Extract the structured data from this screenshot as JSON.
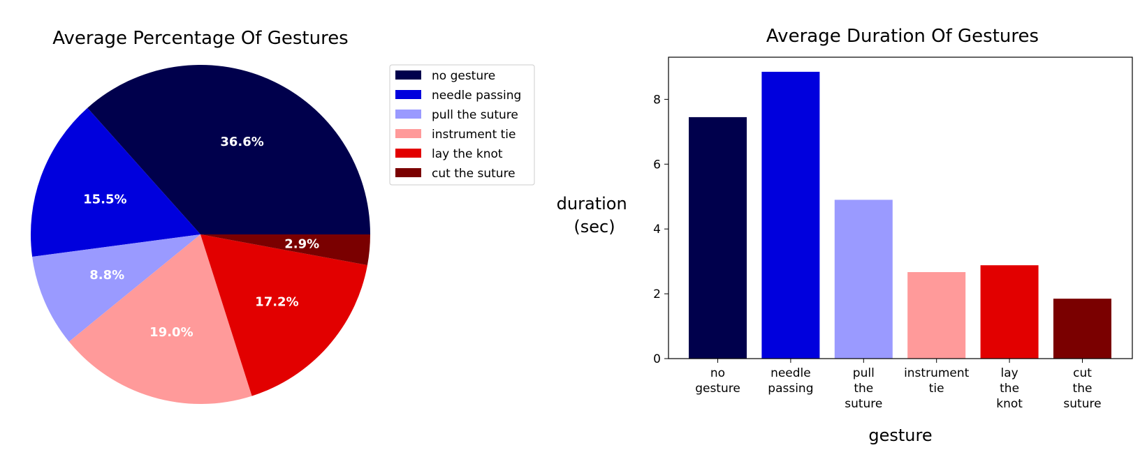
{
  "chart_data": [
    {
      "type": "pie",
      "title": "Average Percentage Of Gestures",
      "labels": [
        "no gesture",
        "needle passing",
        "pull the suture",
        "instrument tie",
        "lay the knot",
        "cut the suture"
      ],
      "values": [
        36.6,
        15.5,
        8.8,
        19.0,
        17.2,
        2.9
      ],
      "value_labels": [
        "36.6%",
        "15.5%",
        "8.8%",
        "19.0%",
        "17.2%",
        "2.9%"
      ],
      "colors": [
        "#00004c",
        "#0000dd",
        "#9a9aff",
        "#ff9a9a",
        "#e20000",
        "#7a0000"
      ],
      "start_angle_deg": 0,
      "direction": "counterclockwise",
      "legend": {
        "placement": "upper-right",
        "entries": [
          "no gesture",
          "needle passing",
          "pull the suture",
          "instrument tie",
          "lay the knot",
          "cut the suture"
        ]
      }
    },
    {
      "type": "bar",
      "title": "Average Duration Of Gestures",
      "categories": [
        [
          "no",
          "gesture"
        ],
        [
          "needle",
          "passing"
        ],
        [
          "pull",
          "the",
          "suture"
        ],
        [
          "instrument",
          "tie"
        ],
        [
          "lay",
          "the",
          "knot"
        ],
        [
          "cut",
          "the",
          "suture"
        ]
      ],
      "values": [
        7.45,
        8.85,
        4.9,
        2.67,
        2.88,
        1.85
      ],
      "colors": [
        "#00004c",
        "#0000dd",
        "#9a9aff",
        "#ff9a9a",
        "#e20000",
        "#7a0000"
      ],
      "xlabel": "gesture",
      "ylabel": [
        "duration",
        "(sec)"
      ],
      "ylim": [
        0,
        9.3
      ],
      "yticks": [
        0,
        2,
        4,
        6,
        8
      ],
      "grid": false
    }
  ]
}
